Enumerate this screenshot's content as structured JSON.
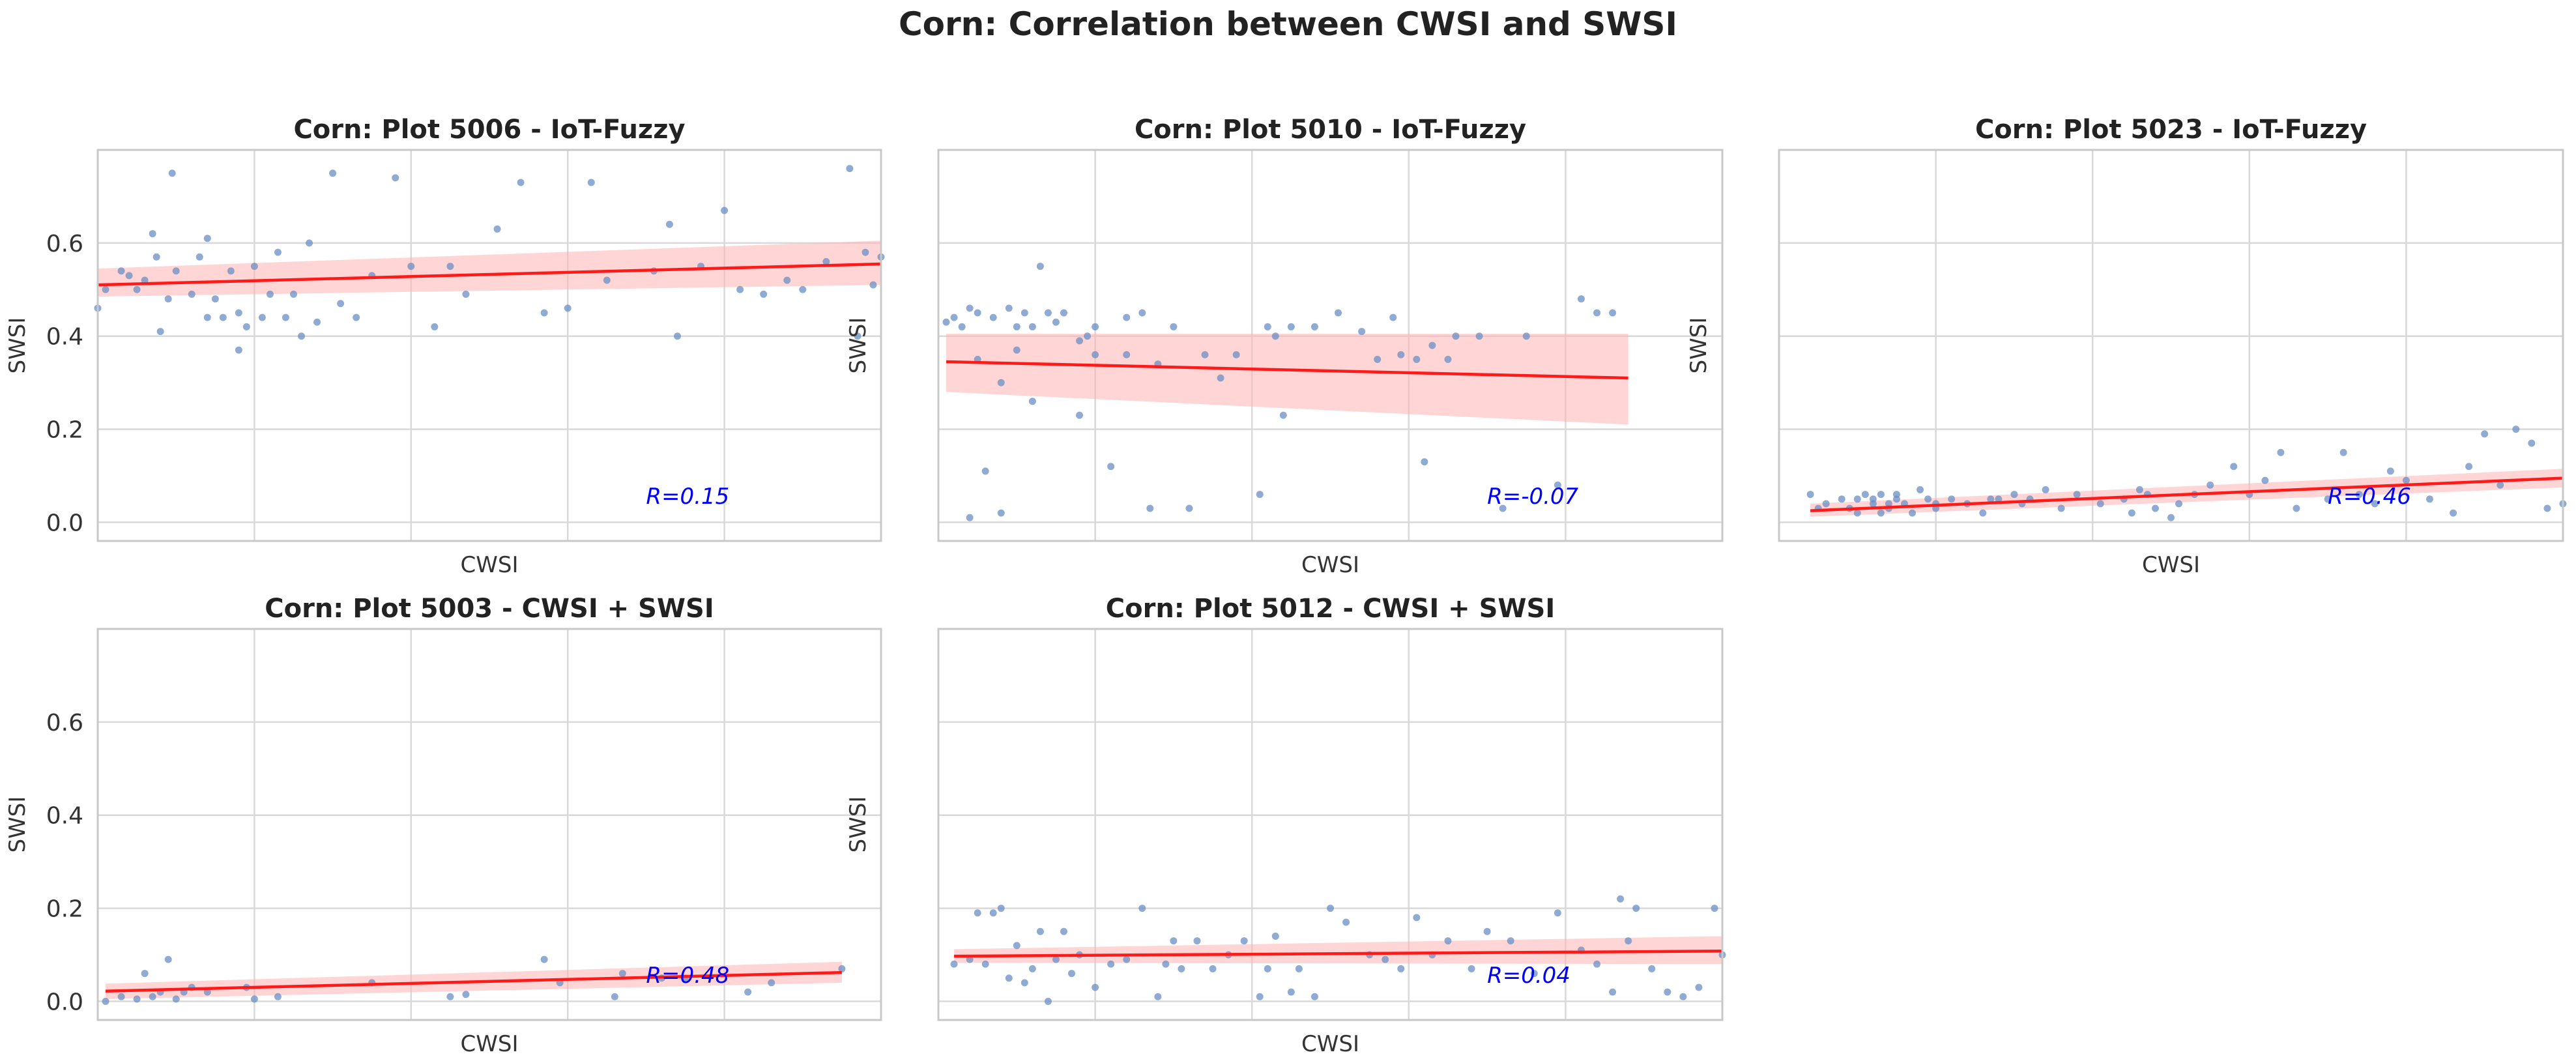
{
  "figure": {
    "title": "Corn: Correlation between CWSI and SWSI",
    "colors": {
      "points": "#6b8fc4",
      "fit_line": "#ff1a1a",
      "ci_band": "#ffb3b3",
      "r_text": "#0000ff",
      "grid": "#d9d9d9",
      "frame": "#c8c8c8"
    }
  },
  "chart_data": [
    {
      "type": "scatter",
      "title": "Corn: Plot 5006 - IoT-Fuzzy",
      "xlabel": "CWSI",
      "ylabel": "SWSI",
      "ylim": [
        -0.04,
        0.8
      ],
      "yticks": [
        "0.0",
        "0.2",
        "0.4",
        "0.6"
      ],
      "xlim": [
        0,
        1
      ],
      "grid": true,
      "annotation": "R=0.15",
      "fit": {
        "x": [
          0,
          1
        ],
        "y": [
          0.51,
          0.555
        ],
        "ci_low": [
          0.485,
          0.51
        ],
        "ci_high": [
          0.545,
          0.605
        ]
      },
      "points": {
        "x": [
          0.0,
          0.01,
          0.03,
          0.04,
          0.05,
          0.06,
          0.07,
          0.075,
          0.08,
          0.09,
          0.095,
          0.1,
          0.12,
          0.13,
          0.14,
          0.14,
          0.15,
          0.16,
          0.17,
          0.18,
          0.18,
          0.19,
          0.2,
          0.21,
          0.22,
          0.23,
          0.24,
          0.25,
          0.26,
          0.27,
          0.28,
          0.3,
          0.31,
          0.33,
          0.35,
          0.38,
          0.4,
          0.43,
          0.45,
          0.47,
          0.51,
          0.54,
          0.57,
          0.6,
          0.63,
          0.65,
          0.71,
          0.73,
          0.74,
          0.77,
          0.8,
          0.82,
          0.85,
          0.88,
          0.9,
          0.93,
          0.97,
          0.99,
          1.0,
          0.98,
          0.96
        ],
        "y": [
          0.46,
          0.5,
          0.54,
          0.53,
          0.5,
          0.52,
          0.62,
          0.57,
          0.41,
          0.48,
          0.75,
          0.54,
          0.49,
          0.57,
          0.44,
          0.61,
          0.48,
          0.44,
          0.54,
          0.45,
          0.37,
          0.42,
          0.55,
          0.44,
          0.49,
          0.58,
          0.44,
          0.49,
          0.4,
          0.6,
          0.43,
          0.75,
          0.47,
          0.44,
          0.53,
          0.74,
          0.55,
          0.42,
          0.55,
          0.49,
          0.63,
          0.73,
          0.45,
          0.46,
          0.73,
          0.52,
          0.54,
          0.64,
          0.4,
          0.55,
          0.67,
          0.5,
          0.49,
          0.52,
          0.5,
          0.56,
          0.4,
          0.51,
          0.57,
          0.58,
          0.76
        ]
      }
    },
    {
      "type": "scatter",
      "title": "Corn: Plot 5010 - IoT-Fuzzy",
      "xlabel": "CWSI",
      "ylabel": "SWSI",
      "ylim": [
        -0.04,
        0.8
      ],
      "yticks": [],
      "xlim": [
        0,
        1
      ],
      "grid": true,
      "annotation": "R=-0.07",
      "fit": {
        "x": [
          0.01,
          0.88
        ],
        "y": [
          0.345,
          0.31
        ],
        "ci_low": [
          0.28,
          0.21
        ],
        "ci_high": [
          0.405,
          0.405
        ]
      },
      "points": {
        "x": [
          0.01,
          0.02,
          0.03,
          0.04,
          0.04,
          0.05,
          0.05,
          0.06,
          0.07,
          0.08,
          0.08,
          0.09,
          0.1,
          0.1,
          0.11,
          0.12,
          0.12,
          0.13,
          0.14,
          0.15,
          0.16,
          0.18,
          0.18,
          0.19,
          0.2,
          0.2,
          0.22,
          0.24,
          0.24,
          0.26,
          0.27,
          0.28,
          0.3,
          0.32,
          0.34,
          0.36,
          0.38,
          0.41,
          0.42,
          0.43,
          0.44,
          0.45,
          0.48,
          0.51,
          0.54,
          0.56,
          0.58,
          0.59,
          0.61,
          0.62,
          0.63,
          0.65,
          0.66,
          0.69,
          0.72,
          0.75,
          0.79,
          0.82,
          0.84,
          0.86
        ],
        "y": [
          0.43,
          0.44,
          0.42,
          0.46,
          0.01,
          0.35,
          0.45,
          0.11,
          0.44,
          0.02,
          0.3,
          0.46,
          0.42,
          0.37,
          0.45,
          0.42,
          0.26,
          0.55,
          0.45,
          0.43,
          0.45,
          0.23,
          0.39,
          0.4,
          0.36,
          0.42,
          0.12,
          0.36,
          0.44,
          0.45,
          0.03,
          0.34,
          0.42,
          0.03,
          0.36,
          0.31,
          0.36,
          0.06,
          0.42,
          0.4,
          0.23,
          0.42,
          0.42,
          0.45,
          0.41,
          0.35,
          0.44,
          0.36,
          0.35,
          0.13,
          0.38,
          0.35,
          0.4,
          0.4,
          0.03,
          0.4,
          0.08,
          0.48,
          0.45,
          0.45
        ]
      }
    },
    {
      "type": "scatter",
      "title": "Corn: Plot 5023 - IoT-Fuzzy",
      "xlabel": "CWSI",
      "ylabel": "SWSI",
      "ylim": [
        -0.04,
        0.8
      ],
      "yticks": [],
      "xlim": [
        0,
        1
      ],
      "grid": true,
      "annotation": "R=0.46",
      "fit": {
        "x": [
          0.04,
          1
        ],
        "y": [
          0.025,
          0.095
        ],
        "ci_low": [
          0.012,
          0.075
        ],
        "ci_high": [
          0.04,
          0.115
        ]
      },
      "points": {
        "x": [
          0.04,
          0.05,
          0.06,
          0.08,
          0.09,
          0.1,
          0.1,
          0.11,
          0.12,
          0.12,
          0.13,
          0.13,
          0.14,
          0.14,
          0.15,
          0.15,
          0.16,
          0.17,
          0.18,
          0.19,
          0.2,
          0.2,
          0.22,
          0.24,
          0.26,
          0.27,
          0.28,
          0.3,
          0.31,
          0.32,
          0.34,
          0.36,
          0.38,
          0.41,
          0.44,
          0.45,
          0.46,
          0.47,
          0.48,
          0.5,
          0.51,
          0.53,
          0.55,
          0.58,
          0.6,
          0.62,
          0.64,
          0.66,
          0.7,
          0.72,
          0.74,
          0.76,
          0.78,
          0.8,
          0.83,
          0.86,
          0.88,
          0.9,
          0.92,
          0.94,
          0.96,
          0.98,
          1.0
        ],
        "y": [
          0.06,
          0.03,
          0.04,
          0.05,
          0.03,
          0.05,
          0.02,
          0.06,
          0.05,
          0.04,
          0.02,
          0.06,
          0.04,
          0.03,
          0.05,
          0.06,
          0.04,
          0.02,
          0.07,
          0.05,
          0.03,
          0.04,
          0.05,
          0.04,
          0.02,
          0.05,
          0.05,
          0.06,
          0.04,
          0.05,
          0.07,
          0.03,
          0.06,
          0.04,
          0.05,
          0.02,
          0.07,
          0.06,
          0.03,
          0.01,
          0.04,
          0.06,
          0.08,
          0.12,
          0.06,
          0.09,
          0.15,
          0.03,
          0.05,
          0.15,
          0.06,
          0.04,
          0.11,
          0.09,
          0.05,
          0.02,
          0.12,
          0.19,
          0.08,
          0.2,
          0.17,
          0.03,
          0.04
        ]
      }
    },
    {
      "type": "scatter",
      "title": "Corn: Plot 5003 - CWSI + SWSI",
      "xlabel": "CWSI",
      "ylabel": "SWSI",
      "ylim": [
        -0.04,
        0.8
      ],
      "yticks": [
        "0.0",
        "0.2",
        "0.4",
        "0.6"
      ],
      "xlim": [
        0,
        1
      ],
      "grid": true,
      "annotation": "R=0.48",
      "fit": {
        "x": [
          0.01,
          0.95
        ],
        "y": [
          0.022,
          0.062
        ],
        "ci_low": [
          0.005,
          0.04
        ],
        "ci_high": [
          0.038,
          0.085
        ]
      },
      "points": {
        "x": [
          0.01,
          0.03,
          0.05,
          0.06,
          0.07,
          0.08,
          0.09,
          0.1,
          0.11,
          0.12,
          0.14,
          0.19,
          0.2,
          0.23,
          0.35,
          0.45,
          0.47,
          0.57,
          0.59,
          0.66,
          0.67,
          0.72,
          0.75,
          0.83,
          0.86,
          0.95
        ],
        "y": [
          0.0,
          0.01,
          0.005,
          0.06,
          0.01,
          0.02,
          0.09,
          0.005,
          0.02,
          0.03,
          0.02,
          0.03,
          0.005,
          0.01,
          0.04,
          0.01,
          0.015,
          0.09,
          0.04,
          0.01,
          0.06,
          0.05,
          0.05,
          0.02,
          0.04,
          0.07
        ]
      }
    },
    {
      "type": "scatter",
      "title": "Corn: Plot 5012 - CWSI + SWSI",
      "xlabel": "CWSI",
      "ylabel": "SWSI",
      "ylim": [
        -0.04,
        0.8
      ],
      "yticks": [],
      "xlim": [
        0,
        1
      ],
      "grid": true,
      "annotation": "R=0.04",
      "fit": {
        "x": [
          0.02,
          1
        ],
        "y": [
          0.097,
          0.108
        ],
        "ci_low": [
          0.083,
          0.08
        ],
        "ci_high": [
          0.112,
          0.14
        ]
      },
      "points": {
        "x": [
          0.02,
          0.04,
          0.05,
          0.06,
          0.07,
          0.08,
          0.09,
          0.1,
          0.11,
          0.12,
          0.13,
          0.14,
          0.15,
          0.16,
          0.17,
          0.18,
          0.2,
          0.22,
          0.24,
          0.26,
          0.28,
          0.29,
          0.3,
          0.31,
          0.33,
          0.35,
          0.37,
          0.39,
          0.41,
          0.42,
          0.43,
          0.45,
          0.46,
          0.48,
          0.5,
          0.52,
          0.55,
          0.57,
          0.59,
          0.61,
          0.63,
          0.65,
          0.68,
          0.7,
          0.73,
          0.76,
          0.79,
          0.82,
          0.84,
          0.86,
          0.87,
          0.88,
          0.89,
          0.91,
          0.93,
          0.95,
          0.97,
          0.99,
          1.0
        ],
        "y": [
          0.08,
          0.09,
          0.19,
          0.08,
          0.19,
          0.2,
          0.05,
          0.12,
          0.04,
          0.07,
          0.15,
          0.0,
          0.09,
          0.15,
          0.06,
          0.1,
          0.03,
          0.08,
          0.09,
          0.2,
          0.01,
          0.08,
          0.13,
          0.07,
          0.13,
          0.07,
          0.1,
          0.13,
          0.01,
          0.07,
          0.14,
          0.02,
          0.07,
          0.01,
          0.2,
          0.17,
          0.1,
          0.09,
          0.07,
          0.18,
          0.1,
          0.13,
          0.07,
          0.15,
          0.13,
          0.06,
          0.19,
          0.11,
          0.08,
          0.02,
          0.22,
          0.13,
          0.2,
          0.07,
          0.02,
          0.01,
          0.03,
          0.2,
          0.1
        ]
      }
    }
  ]
}
